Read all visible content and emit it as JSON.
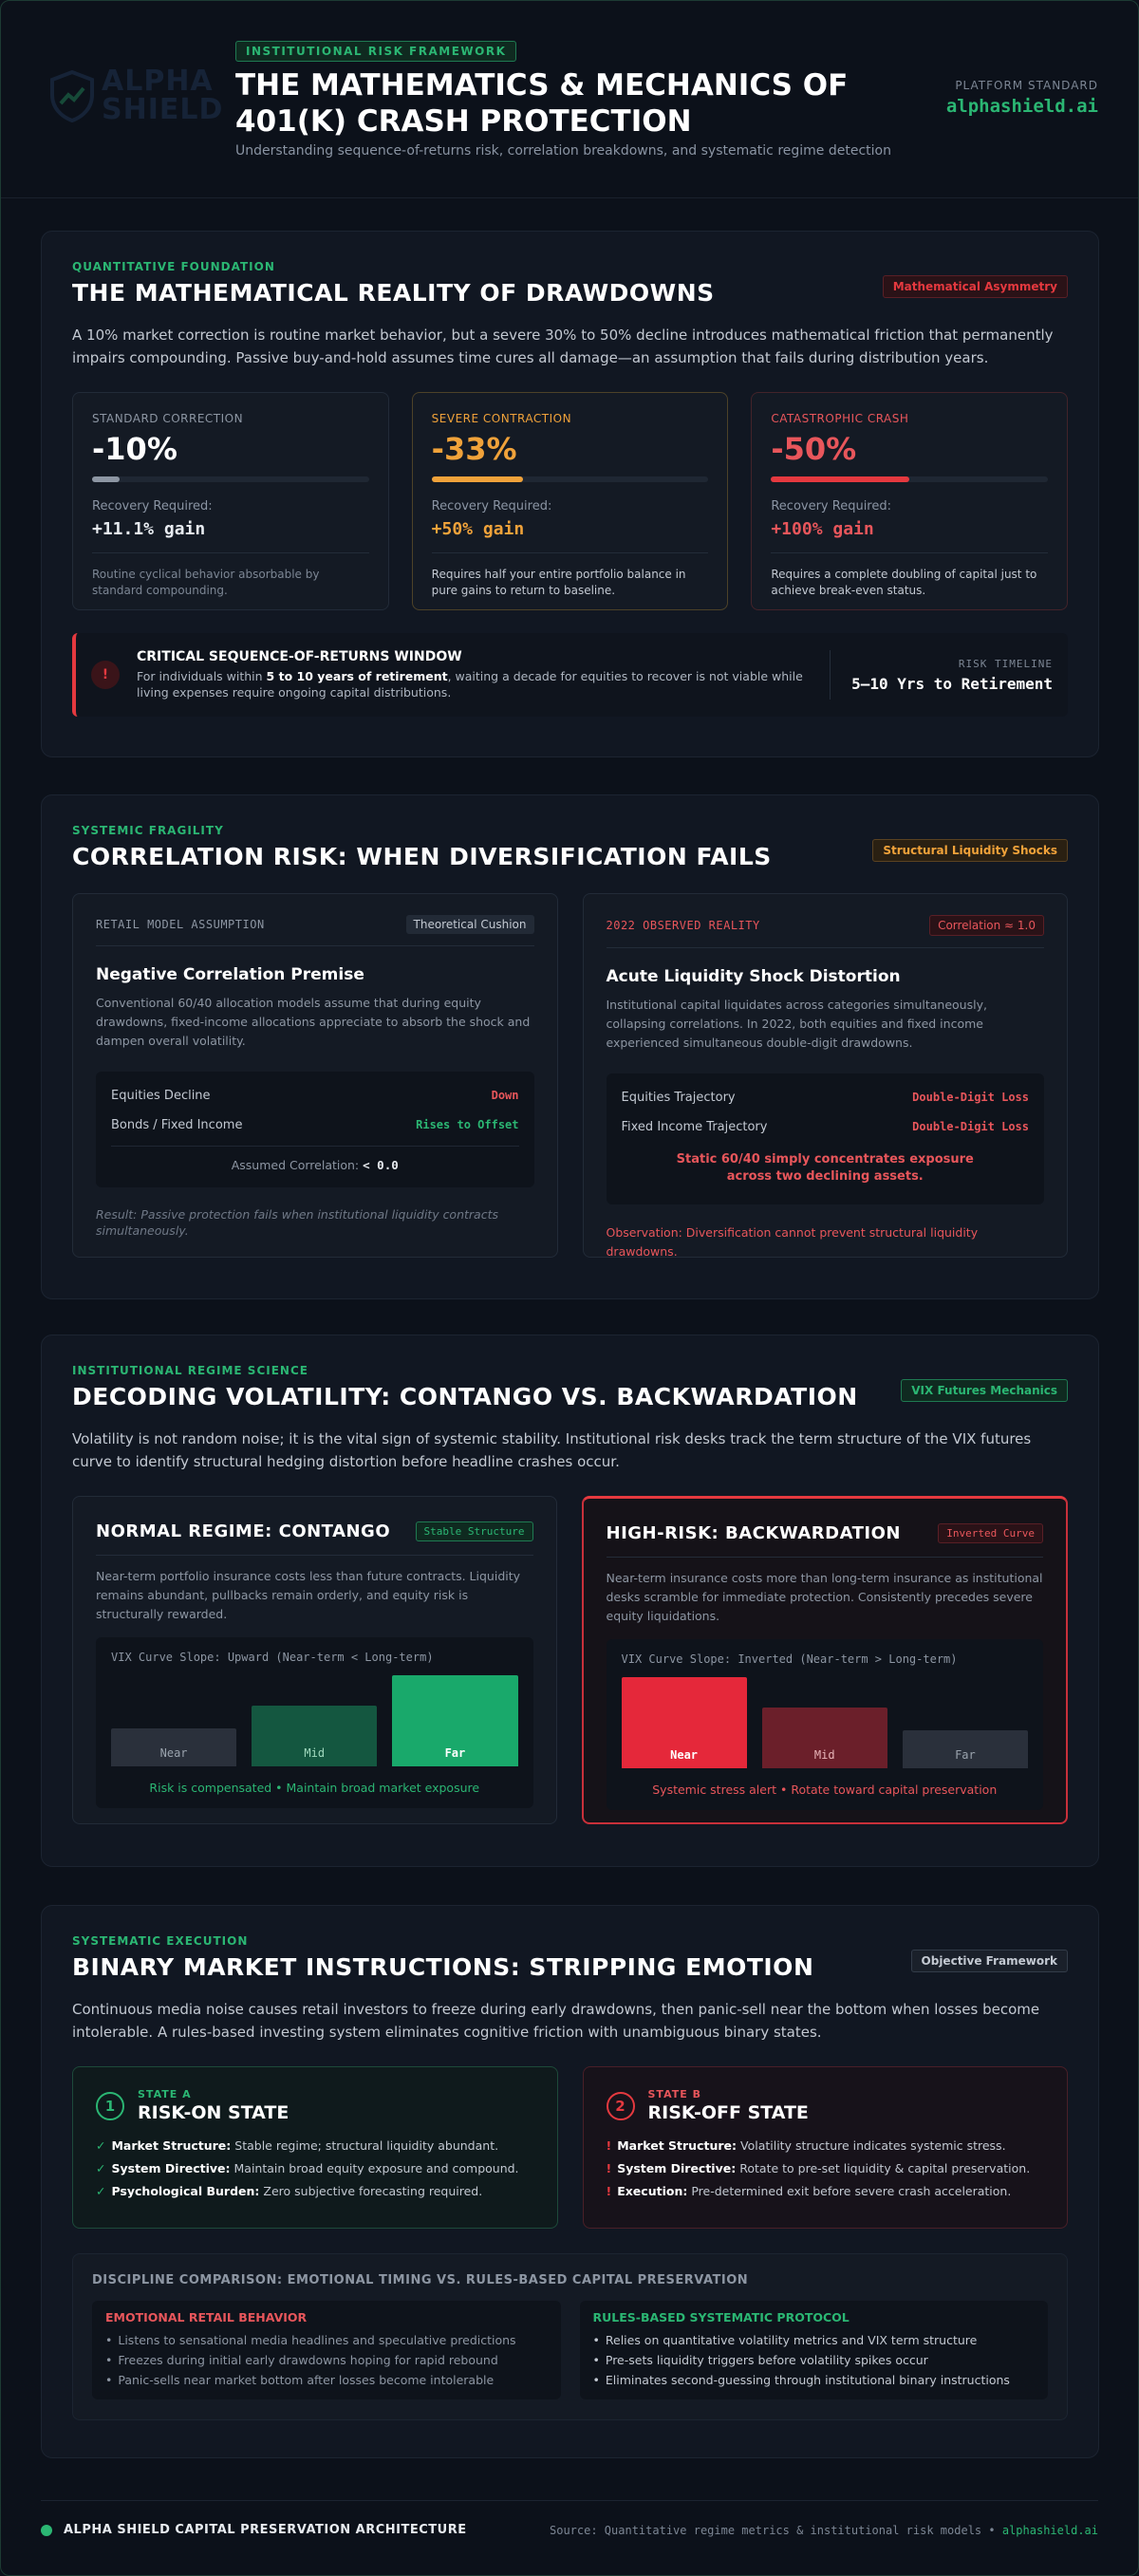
{
  "header": {
    "logo_top": "ALPHA",
    "logo_bottom": "SHIELD",
    "badge": "INSTITUTIONAL RISK FRAMEWORK",
    "title": "THE MATHEMATICS & MECHANICS OF 401(K) CRASH PROTECTION",
    "subtitle": "Understanding sequence-of-returns risk, correlation breakdowns, and systematic regime detection",
    "platform_label": "PLATFORM STANDARD",
    "platform_url": "alphashield.ai"
  },
  "drawdowns": {
    "eyebrow": "QUANTITATIVE FOUNDATION",
    "title": "THE MATHEMATICAL REALITY OF DRAWDOWNS",
    "tag": "Mathematical Asymmetry",
    "intro": "A 10% market correction is routine market behavior, but a severe 30% to 50% decline introduces mathematical friction that permanently impairs compounding. Passive buy-and-hold assumes time cures all damage—an assumption that fails during distribution years.",
    "cards": [
      {
        "label": "STANDARD CORRECTION",
        "value": "-10%",
        "recovery_label": "Recovery Required:",
        "recovery": "+11.1% gain",
        "note": "Routine cyclical behavior absorbable by standard compounding."
      },
      {
        "label": "SEVERE CONTRACTION",
        "value": "-33%",
        "recovery_label": "Recovery Required:",
        "recovery": "+50% gain",
        "note": "Requires half your entire portfolio balance in pure gains to return to baseline."
      },
      {
        "label": "CATASTROPHIC CRASH",
        "value": "-50%",
        "recovery_label": "Recovery Required:",
        "recovery": "+100% gain",
        "note": "Requires a complete doubling of capital just to achieve break-even status."
      }
    ],
    "alert": {
      "icon": "!",
      "title": "CRITICAL SEQUENCE-OF-RETURNS WINDOW",
      "text_pre": "For individuals within ",
      "text_bold": "5 to 10 years of retirement",
      "text_post": ", waiting a decade for equities to recover is not viable while living expenses require ongoing capital distributions.",
      "timeline_label": "RISK TIMELINE",
      "timeline_value": "5–10 Yrs to Retirement"
    }
  },
  "correlation": {
    "eyebrow": "SYSTEMIC FRAGILITY",
    "title": "CORRELATION RISK: WHEN DIVERSIFICATION FAILS",
    "tag": "Structural Liquidity Shocks",
    "left": {
      "label": "RETAIL MODEL ASSUMPTION",
      "tag": "Theoretical Cushion",
      "title": "Negative Correlation Premise",
      "text": "Conventional 60/40 allocation models assume that during equity drawdowns, fixed-income allocations appreciate to absorb the shock and dampen overall volatility.",
      "rows": [
        [
          "Equities Decline",
          "Down"
        ],
        [
          "Bonds / Fixed Income",
          "Rises to Offset"
        ]
      ],
      "footer_label": "Assumed Correlation:",
      "footer_value": "< 0.0",
      "result": "Result: Passive protection fails when institutional liquidity contracts simultaneously."
    },
    "right": {
      "label": "2022 OBSERVED REALITY",
      "tag": "Correlation ≈ 1.0",
      "title": "Acute Liquidity Shock Distortion",
      "text": "Institutional capital liquidates across categories simultaneously, collapsing correlations. In 2022, both equities and fixed income experienced simultaneous double-digit drawdowns.",
      "rows": [
        [
          "Equities Trajectory",
          "Double-Digit Loss"
        ],
        [
          "Fixed Income Trajectory",
          "Double-Digit Loss"
        ]
      ],
      "footer": "Static 60/40 simply concentrates exposure across two declining assets.",
      "observation": "Observation: Diversification cannot prevent structural liquidity drawdowns."
    }
  },
  "volatility": {
    "eyebrow": "INSTITUTIONAL REGIME SCIENCE",
    "title": "DECODING VOLATILITY: CONTANGO VS. BACKWARDATION",
    "tag": "VIX Futures Mechanics",
    "intro": "Volatility is not random noise; it is the vital sign of systemic stability. Institutional risk desks track the term structure of the VIX futures curve to identify structural hedging distortion before headline crashes occur.",
    "left": {
      "title": "NORMAL REGIME: CONTANGO",
      "tag": "Stable Structure",
      "text": "Near-term portfolio insurance costs less than future contracts. Liquidity remains abundant, pullbacks remain orderly, and equity risk is structurally rewarded.",
      "chart_label": "VIX Curve Slope: Upward (Near-term < Long-term)",
      "bars": [
        "Near",
        "Mid",
        "Far"
      ],
      "caption": "Risk is compensated • Maintain broad market exposure"
    },
    "right": {
      "title": "HIGH-RISK: BACKWARDATION",
      "tag": "Inverted Curve",
      "text": "Near-term insurance costs more than long-term insurance as institutional desks scramble for immediate protection. Consistently precedes severe equity liquidations.",
      "chart_label": "VIX Curve Slope: Inverted (Near-term > Long-term)",
      "bars": [
        "Near",
        "Mid",
        "Far"
      ],
      "caption": "Systemic stress alert • Rotate toward capital preservation"
    }
  },
  "binary": {
    "eyebrow": "SYSTEMATIC EXECUTION",
    "title": "BINARY MARKET INSTRUCTIONS: STRIPPING EMOTION",
    "tag": "Objective Framework",
    "intro": "Continuous media noise causes retail investors to freeze during early drawdowns, then panic-sell near the bottom when losses become intolerable. A rules-based investing system eliminates cognitive friction with unambiguous binary states.",
    "states": [
      {
        "number": "1",
        "kicker": "STATE A",
        "title": "RISK-ON STATE",
        "items": [
          {
            "mark": "✓",
            "label": "Market Structure:",
            "text": "Stable regime; structural liquidity abundant."
          },
          {
            "mark": "✓",
            "label": "System Directive:",
            "text": "Maintain broad equity exposure and compound."
          },
          {
            "mark": "✓",
            "label": "Psychological Burden:",
            "text": "Zero subjective forecasting required."
          }
        ]
      },
      {
        "number": "2",
        "kicker": "STATE B",
        "title": "RISK-OFF STATE",
        "items": [
          {
            "mark": "!",
            "label": "Market Structure:",
            "text": "Volatility structure indicates systemic stress."
          },
          {
            "mark": "!",
            "label": "System Directive:",
            "text": "Rotate to pre-set liquidity & capital preservation."
          },
          {
            "mark": "!",
            "label": "Execution:",
            "text": "Pre-determined exit before severe crash acceleration."
          }
        ]
      }
    ],
    "comparison": {
      "title": "DISCIPLINE COMPARISON: EMOTIONAL TIMING VS. RULES-BASED CAPITAL PRESERVATION",
      "left": {
        "title": "EMOTIONAL RETAIL BEHAVIOR",
        "items": [
          "Listens to sensational media headlines and speculative predictions",
          "Freezes during initial early drawdowns hoping for rapid rebound",
          "Panic-sells near market bottom after losses become intolerable"
        ]
      },
      "right": {
        "title": "RULES-BASED SYSTEMATIC PROTOCOL",
        "items": [
          "Relies on quantitative volatility metrics and VIX term structure",
          "Pre-sets liquidity triggers before volatility spikes occur",
          "Eliminates second-guessing through institutional binary instructions"
        ]
      }
    }
  },
  "footer": {
    "brand": "ALPHA SHIELD CAPITAL PRESERVATION ARCHITECTURE",
    "source": "Source: Quantitative regime metrics & institutional risk models •",
    "url": "alphashield.ai"
  }
}
